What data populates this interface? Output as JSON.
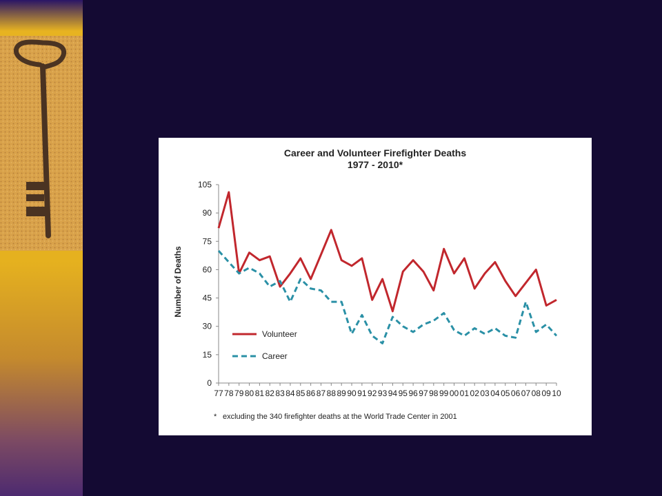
{
  "colors": {
    "background": "#140a33",
    "volunteer": "#c1272d",
    "career": "#2a90a6"
  },
  "sidebar": {
    "image": "key-photo"
  },
  "chart_data": {
    "type": "line",
    "title": "Career and Volunteer Firefighter Deaths",
    "subtitle": "1977 - 2010*",
    "xlabel": "",
    "ylabel": "Number of Deaths",
    "ylim": [
      0,
      105
    ],
    "yticks": [
      "0",
      "15",
      "30",
      "45",
      "60",
      "75",
      "90",
      "105"
    ],
    "categories": [
      "77",
      "78",
      "79",
      "80",
      "81",
      "82",
      "83",
      "84",
      "85",
      "86",
      "87",
      "88",
      "89",
      "90",
      "91",
      "92",
      "93",
      "94",
      "95",
      "96",
      "97",
      "98",
      "99",
      "00",
      "01",
      "02",
      "03",
      "04",
      "05",
      "06",
      "07",
      "08",
      "09",
      "10"
    ],
    "series": [
      {
        "name": "Volunteer",
        "style": "solid",
        "color": "#c1272d",
        "values": [
          82,
          101,
          58,
          69,
          65,
          67,
          51,
          58,
          66,
          55,
          68,
          81,
          65,
          62,
          66,
          44,
          55,
          38,
          59,
          65,
          59,
          49,
          71,
          58,
          66,
          50,
          58,
          64,
          54,
          46,
          53,
          60,
          41,
          44
        ]
      },
      {
        "name": "Career",
        "style": "dashed",
        "color": "#2a90a6",
        "values": [
          70,
          64,
          58,
          61,
          58,
          51,
          54,
          43,
          55,
          50,
          49,
          43,
          43,
          26,
          36,
          25,
          21,
          35,
          30,
          27,
          31,
          33,
          37,
          28,
          25,
          29,
          26,
          29,
          25,
          24,
          43,
          27,
          31,
          25
        ]
      }
    ],
    "legend_position": "lower-left",
    "grid": false,
    "footnote_marker": "*",
    "footnote": "excluding the 340 firefighter deaths at the World Trade Center in 2001"
  }
}
